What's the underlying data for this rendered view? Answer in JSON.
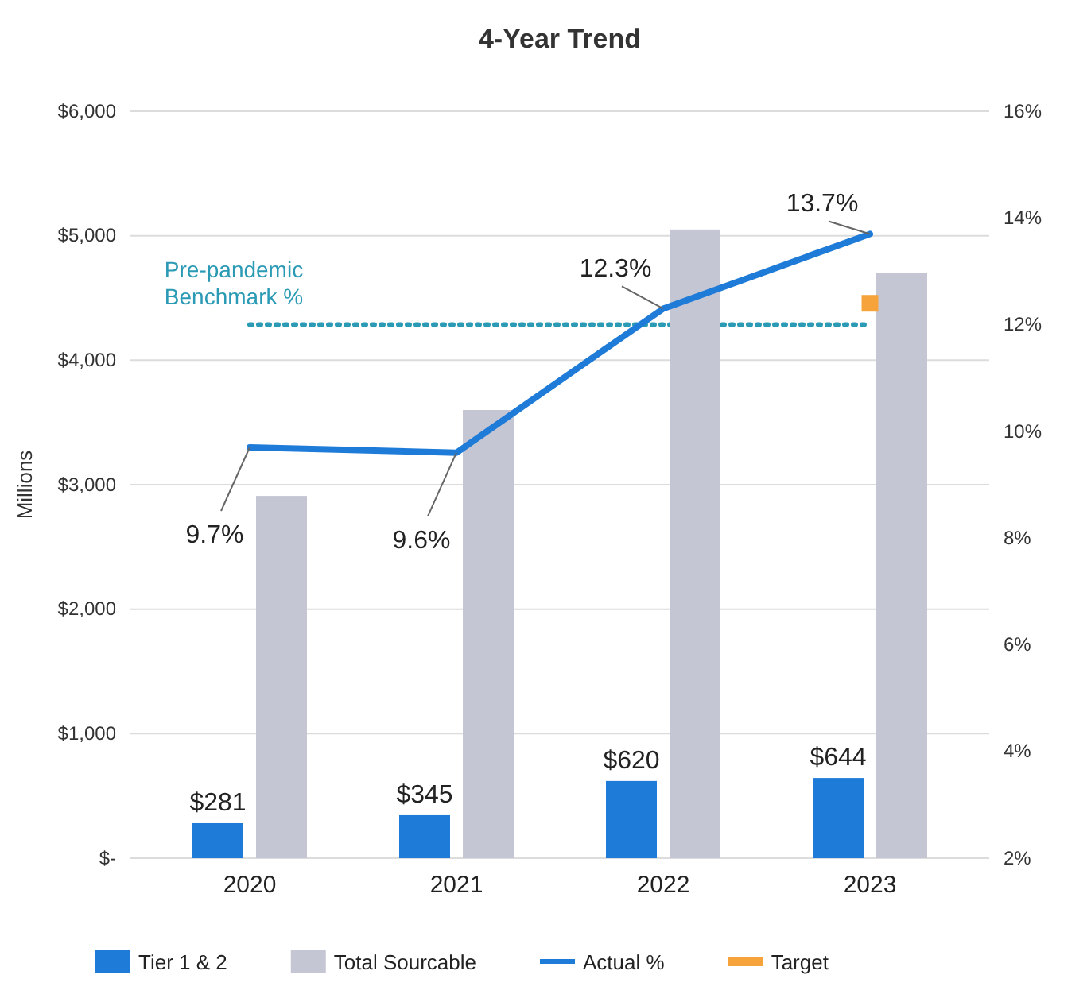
{
  "chart_data": {
    "type": "bar",
    "title": "4-Year Trend",
    "ylabel": "Millions",
    "categories": [
      "2020",
      "2021",
      "2022",
      "2023"
    ],
    "series": [
      {
        "name": "Tier 1 & 2",
        "color": "#1f7bd8",
        "values": [
          281,
          345,
          620,
          644
        ],
        "value_labels": [
          "$281",
          "$345",
          "$620",
          "$644"
        ]
      },
      {
        "name": "Total Sourcable",
        "color": "#c5c6d4",
        "values": [
          2910,
          3600,
          5050,
          4700
        ]
      },
      {
        "name": "Actual %",
        "type": "line",
        "axis": "y2",
        "color": "#1f7bd8",
        "values": [
          9.7,
          9.6,
          12.3,
          13.7
        ],
        "value_labels": [
          "9.7%",
          "9.6%",
          "12.3%",
          "13.7%"
        ]
      },
      {
        "name": "Target",
        "type": "scatter",
        "axis": "y2",
        "color": "#f5a33a",
        "marker": "square",
        "values": [
          null,
          null,
          null,
          12.4
        ]
      }
    ],
    "ylim": [
      0,
      6000
    ],
    "yticks": [
      {
        "value": 0,
        "label": "$-"
      },
      {
        "value": 1000,
        "label": "$1,000"
      },
      {
        "value": 2000,
        "label": "$2,000"
      },
      {
        "value": 3000,
        "label": "$3,000"
      },
      {
        "value": 4000,
        "label": "$4,000"
      },
      {
        "value": 5000,
        "label": "$5,000"
      },
      {
        "value": 6000,
        "label": "$6,000"
      }
    ],
    "y2lim": [
      2,
      16
    ],
    "y2ticks": [
      {
        "value": 2,
        "label": "2%"
      },
      {
        "value": 4,
        "label": "4%"
      },
      {
        "value": 6,
        "label": "6%"
      },
      {
        "value": 8,
        "label": "8%"
      },
      {
        "value": 10,
        "label": "10%"
      },
      {
        "value": 12,
        "label": "12%"
      },
      {
        "value": 14,
        "label": "14%"
      },
      {
        "value": 16,
        "label": "16%"
      }
    ],
    "ref_lines": [
      {
        "axis": "y2",
        "value": 12,
        "label": "Pre-pandemic Benchmark %",
        "color": "#2b9ab5",
        "line_style": "dotted"
      }
    ],
    "grid": "y",
    "legend": "bottom",
    "marker": "none"
  }
}
